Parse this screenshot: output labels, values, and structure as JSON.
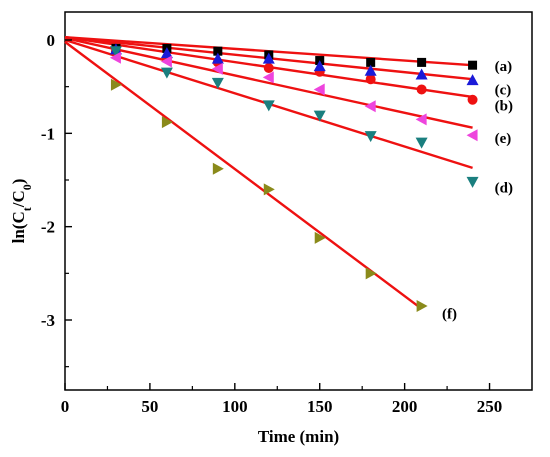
{
  "chart_data": {
    "type": "scatter",
    "xlabel": "Time (min)",
    "ylabel_parts": {
      "main": "ln(C",
      "sub1": "t",
      "mid": "/C",
      "sub2": "0",
      "end": ")"
    },
    "xlim": [
      0,
      275
    ],
    "ylim": [
      -3.75,
      0.3
    ],
    "x_ticks": [
      0,
      50,
      100,
      150,
      200,
      250
    ],
    "y_ticks": [
      0,
      -1,
      -2,
      -3
    ],
    "grid": false,
    "fit_color": "#ee1111",
    "series": [
      {
        "name": "(a)",
        "color": "#000000",
        "marker": "square",
        "x": [
          30,
          60,
          90,
          120,
          150,
          180,
          210,
          240
        ],
        "y": [
          -0.09,
          -0.09,
          -0.12,
          -0.16,
          -0.22,
          -0.24,
          -0.24,
          -0.27
        ],
        "fit": [
          [
            0,
            0.03
          ],
          [
            240,
            -0.27
          ]
        ],
        "label_at": [
          253,
          -0.28
        ]
      },
      {
        "name": "(b)",
        "color": "#ee1111",
        "marker": "circle",
        "x": [
          30,
          60,
          90,
          120,
          150,
          180,
          210,
          240
        ],
        "y": [
          -0.12,
          -0.2,
          -0.24,
          -0.3,
          -0.34,
          -0.42,
          -0.53,
          -0.64
        ],
        "fit": [
          [
            0,
            0.03
          ],
          [
            240,
            -0.61
          ]
        ],
        "label_at": [
          253,
          -0.7
        ]
      },
      {
        "name": "(c)",
        "color": "#1a1ad8",
        "marker": "triangle-up",
        "x": [
          30,
          60,
          90,
          120,
          150,
          180,
          210,
          240
        ],
        "y": [
          -0.1,
          -0.14,
          -0.2,
          -0.2,
          -0.28,
          -0.33,
          -0.37,
          -0.43
        ],
        "fit": [
          [
            0,
            0.03
          ],
          [
            240,
            -0.42
          ]
        ],
        "label_at": [
          253,
          -0.53
        ]
      },
      {
        "name": "(d)",
        "color": "#1a7f7f",
        "marker": "triangle-down",
        "x": [
          30,
          60,
          90,
          120,
          150,
          180,
          210,
          240
        ],
        "y": [
          -0.12,
          -0.35,
          -0.46,
          -0.7,
          -0.81,
          -1.03,
          -1.1,
          -1.52
        ],
        "fit": [
          [
            0,
            0.0
          ],
          [
            240,
            -1.37
          ]
        ],
        "label_at": [
          253,
          -1.58
        ]
      },
      {
        "name": "(e)",
        "color": "#ee44dd",
        "marker": "triangle-left",
        "x": [
          30,
          60,
          90,
          120,
          150,
          180,
          210,
          240
        ],
        "y": [
          -0.19,
          -0.23,
          -0.31,
          -0.4,
          -0.53,
          -0.71,
          -0.85,
          -1.02
        ],
        "fit": [
          [
            0,
            0.02
          ],
          [
            240,
            -0.94
          ]
        ],
        "label_at": [
          253,
          -1.05
        ]
      },
      {
        "name": "(f)",
        "color": "#8a8a1a",
        "marker": "triangle-right",
        "x": [
          30,
          60,
          90,
          120,
          150,
          180,
          210
        ],
        "y": [
          -0.48,
          -0.88,
          -1.38,
          -1.6,
          -2.12,
          -2.5,
          -2.85
        ],
        "fit": [
          [
            0,
            -0.02
          ],
          [
            210,
            -2.88
          ]
        ],
        "label_at": [
          222,
          -2.93
        ]
      }
    ]
  }
}
